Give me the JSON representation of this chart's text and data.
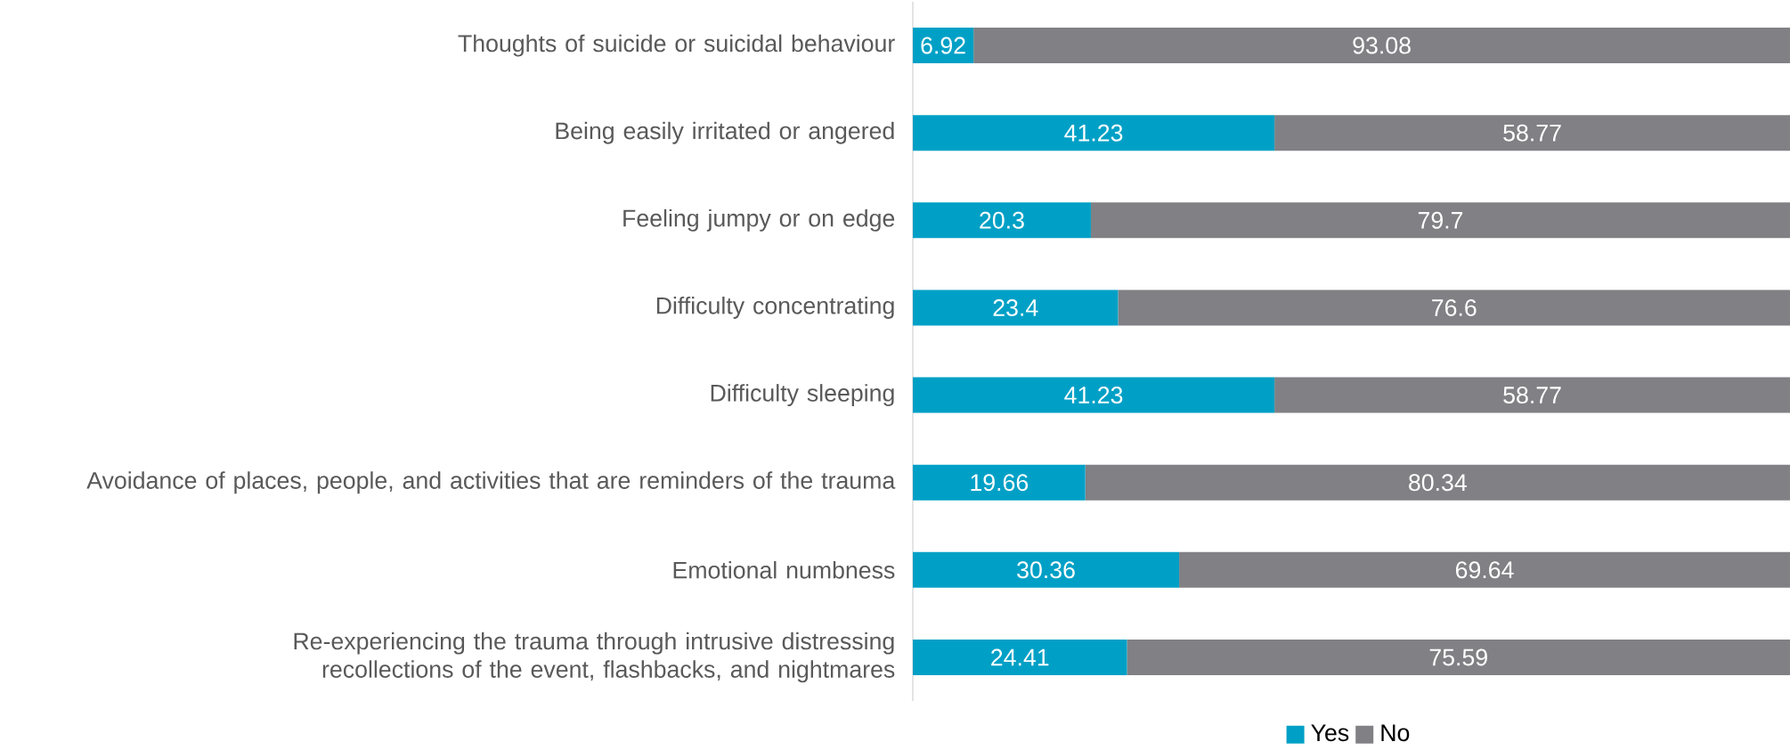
{
  "chart_data": {
    "type": "bar",
    "orientation": "horizontal",
    "stacked": true,
    "data_labels": true,
    "legend": "bottom",
    "categories": [
      "Thoughts of suicide or suicidal behaviour",
      "Being easily irritated or angered",
      "Feeling jumpy or on edge",
      "Difficulty concentrating",
      "Difficulty sleeping",
      "Avoidance of places, people, and activities that are reminders of the trauma",
      "Emotional numbness",
      "Re-experiencing the trauma through intrusive distressing recollections of the event, flashbacks, and nightmares"
    ],
    "series": [
      {
        "name": "Yes",
        "color": "#00a0c6",
        "values": [
          6.92,
          41.23,
          20.3,
          23.4,
          41.23,
          19.66,
          30.36,
          24.41
        ]
      },
      {
        "name": "No",
        "color": "#808085",
        "values": [
          93.08,
          58.77,
          79.7,
          76.6,
          58.77,
          80.34,
          69.64,
          75.59
        ]
      }
    ]
  }
}
